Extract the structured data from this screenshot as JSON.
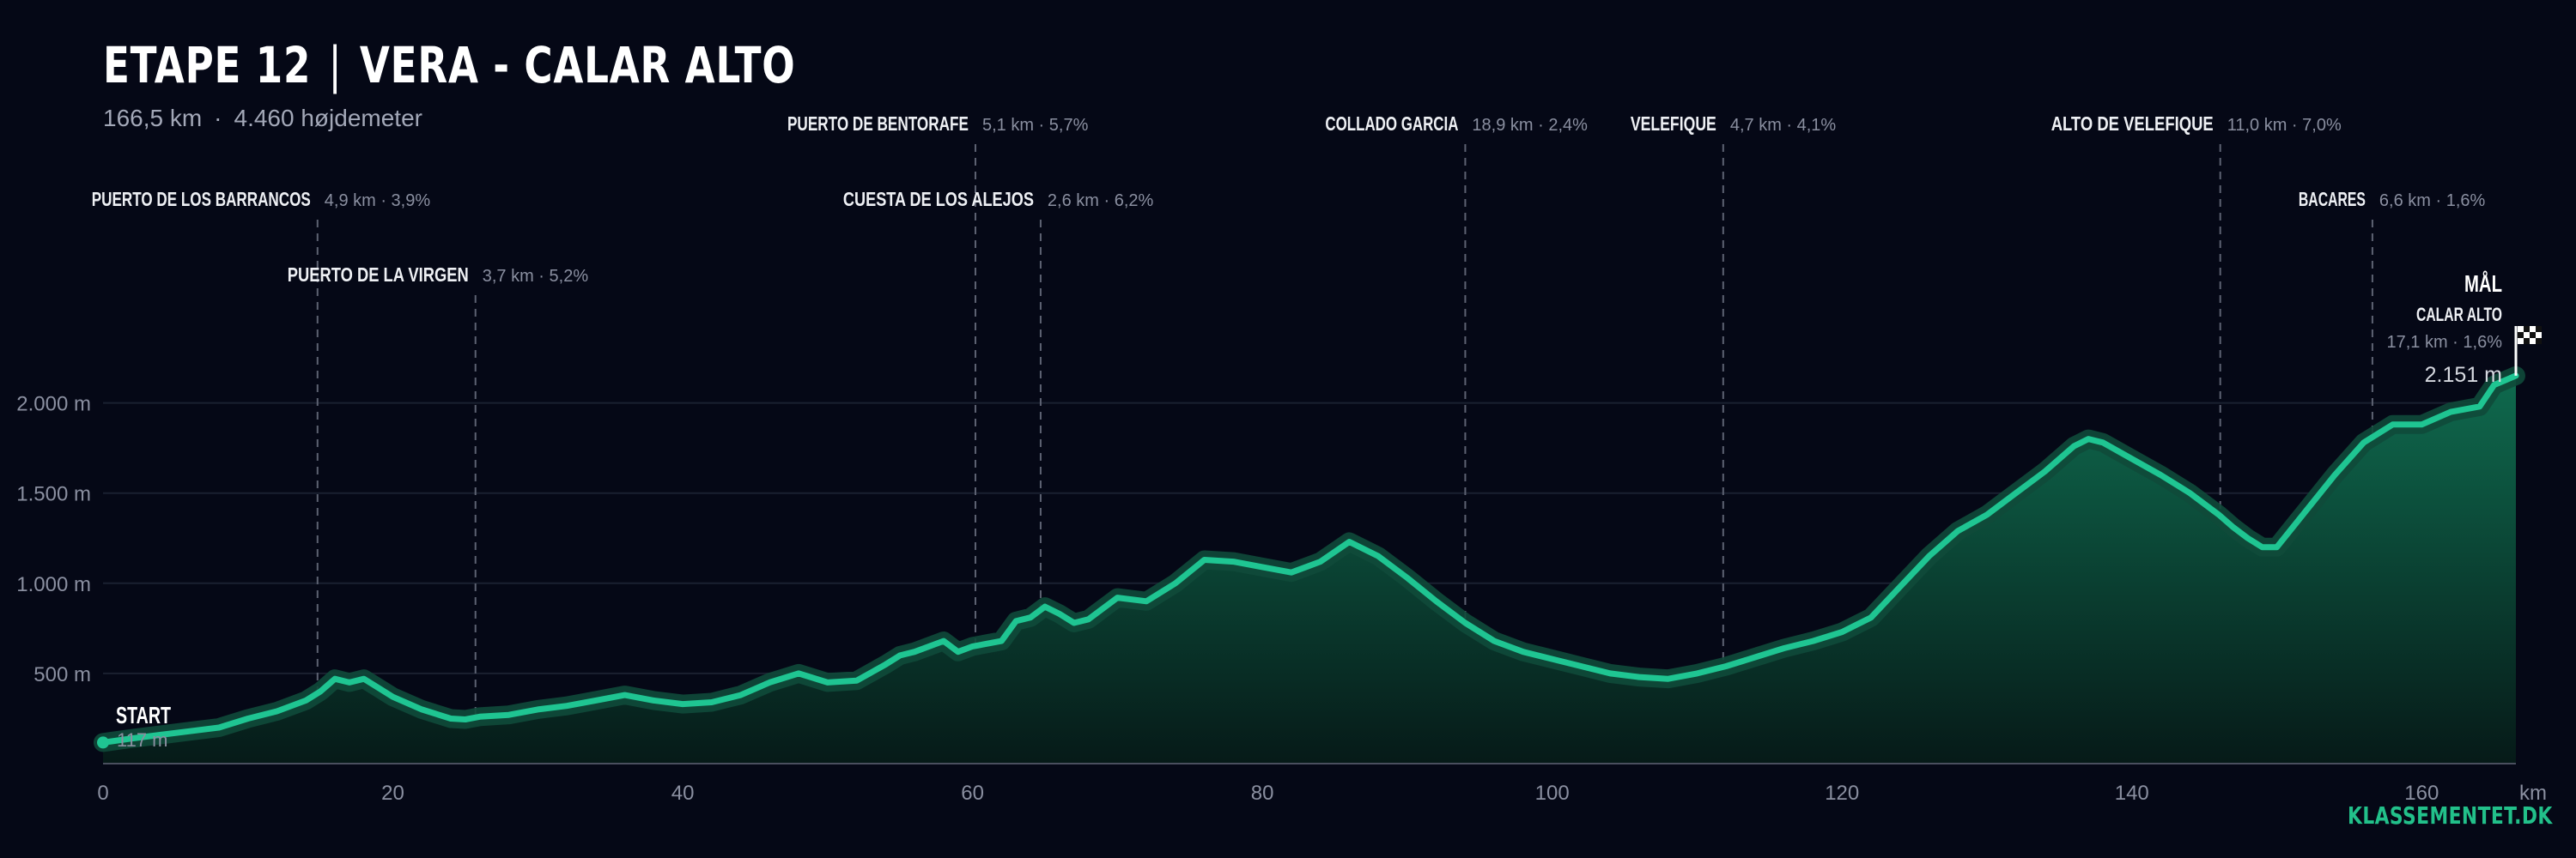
{
  "header": {
    "stage": "ETAPE 12",
    "separator": "|",
    "route": "VERA - CALAR ALTO",
    "distance": "166,5 km",
    "dot": "·",
    "elevation_gain": "4.460 højdemeter"
  },
  "brand": "KLASSEMENTET.DK",
  "colors": {
    "background": "#050816",
    "line": "#1fc592",
    "glow": "#0f4a3a",
    "fill_top": "#0f6a4e",
    "fill_bottom": "#061a18",
    "grid": "#1a2030",
    "climb_marker": "#5d6272"
  },
  "chart_data": {
    "type": "area",
    "xlabel": "km",
    "ylabel": "",
    "xlim": [
      0,
      166.5
    ],
    "ylim": [
      0,
      2300
    ],
    "xticks": [
      0,
      20,
      40,
      60,
      80,
      100,
      120,
      140,
      160
    ],
    "yticks": [
      {
        "value": 500,
        "label": "500 m"
      },
      {
        "value": 1000,
        "label": "1.000 m"
      },
      {
        "value": 1500,
        "label": "1.500 m"
      },
      {
        "value": 2000,
        "label": "2.000 m"
      }
    ],
    "grid": true,
    "profile": {
      "x": [
        0,
        2,
        4,
        6,
        8,
        10,
        12,
        14,
        15,
        16,
        17,
        18,
        19,
        20,
        22,
        24,
        25,
        26,
        28,
        30,
        32,
        34,
        36,
        38,
        40,
        42,
        44,
        46,
        48,
        50,
        52,
        54,
        55,
        56,
        58,
        59,
        60,
        62,
        63,
        64,
        65,
        66,
        67,
        68,
        70,
        72,
        74,
        76,
        78,
        80,
        82,
        84,
        86,
        88,
        90,
        92,
        94,
        96,
        98,
        100,
        102,
        104,
        106,
        108,
        110,
        112,
        114,
        116,
        118,
        120,
        122,
        124,
        126,
        128,
        130,
        132,
        134,
        136,
        137,
        138,
        140,
        142,
        144,
        146,
        147,
        148,
        149,
        150,
        152,
        154,
        156,
        158,
        160,
        162,
        164,
        165,
        166.5
      ],
      "y": [
        117,
        140,
        160,
        180,
        200,
        250,
        290,
        350,
        400,
        470,
        450,
        470,
        420,
        370,
        300,
        250,
        245,
        260,
        270,
        300,
        320,
        350,
        380,
        350,
        330,
        340,
        380,
        450,
        500,
        450,
        460,
        550,
        600,
        620,
        680,
        620,
        650,
        680,
        790,
        810,
        870,
        830,
        780,
        800,
        920,
        900,
        1000,
        1130,
        1120,
        1090,
        1060,
        1120,
        1230,
        1150,
        1030,
        900,
        780,
        680,
        620,
        580,
        540,
        500,
        480,
        470,
        500,
        540,
        590,
        640,
        680,
        730,
        810,
        980,
        1150,
        1290,
        1380,
        1500,
        1620,
        1760,
        1800,
        1780,
        1690,
        1600,
        1500,
        1380,
        1310,
        1250,
        1200,
        1200,
        1400,
        1600,
        1780,
        1880,
        1880,
        1950,
        1980,
        2100,
        2151
      ]
    },
    "start": {
      "label": "START",
      "elevation_text": "117 m",
      "km": 0,
      "elevation": 117
    },
    "finish": {
      "label": "MÅL",
      "name": "CALAR ALTO",
      "detail": "17,1 km · 1,6%",
      "elevation_text": "2.151 m",
      "km": 166.5,
      "elevation": 2151
    },
    "climbs": [
      {
        "name": "PUERTO DE LOS BARRANCOS",
        "detail": "4,9 km · 3,9%",
        "km": 14.8,
        "row": 1
      },
      {
        "name": "PUERTO DE LA VIRGEN",
        "detail": "3,7 km · 5,2%",
        "km": 25.7,
        "row": 2
      },
      {
        "name": "PUERTO DE BENTORAFE",
        "detail": "5,1 km · 5,7%",
        "km": 60.2,
        "row": 0
      },
      {
        "name": "CUESTA DE LOS ALEJOS",
        "detail": "2,6 km · 6,2%",
        "km": 64.7,
        "row": 1
      },
      {
        "name": "COLLADO GARCIA",
        "detail": "18,9 km · 2,4%",
        "km": 94.0,
        "row": 0
      },
      {
        "name": "VELEFIQUE",
        "detail": "4,7 km · 4,1%",
        "km": 111.8,
        "row": 0
      },
      {
        "name": "ALTO DE VELEFIQUE",
        "detail": "11,0 km · 7,0%",
        "km": 146.1,
        "row": 0
      },
      {
        "name": "BACARES",
        "detail": "6,6 km · 1,6%",
        "km": 156.6,
        "row": 1
      }
    ]
  }
}
